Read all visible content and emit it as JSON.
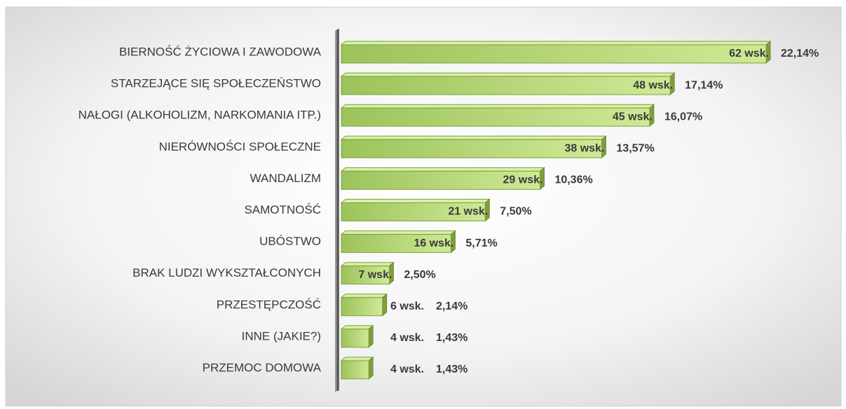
{
  "chart_data": {
    "type": "bar",
    "orientation": "horizontal",
    "categories": [
      "BIERNOŚĆ ŻYCIOWA I ZAWODOWA",
      "STARZEJĄCE SIĘ SPOŁECZEŃSTWO",
      "NAŁOGI (ALKOHOLIZM, NARKOMANIA ITP.)",
      "NIERÓWNOŚCI SPOŁECZNE",
      "WANDALIZM",
      "SAMOTNOŚĆ",
      "UBÓSTWO",
      "BRAK LUDZI WYKSZTAŁCONYCH",
      "PRZESTĘPCZOŚĆ",
      "INNE (JAKIE?)",
      "PRZEMOC DOMOWA"
    ],
    "values": [
      62,
      48,
      45,
      38,
      29,
      21,
      16,
      7,
      6,
      4,
      4
    ],
    "value_labels": [
      "62 wsk.",
      "48 wsk.",
      "45 wsk.",
      "38 wsk.",
      "29 wsk.",
      "21 wsk.",
      "16 wsk.",
      "7 wsk.",
      "6 wsk.",
      "4 wsk.",
      "4 wsk."
    ],
    "shares": [
      22.14,
      17.14,
      16.07,
      13.57,
      10.36,
      7.5,
      5.71,
      2.5,
      2.14,
      1.43,
      1.43
    ],
    "share_labels": [
      "22,14%",
      "17,14%",
      "16,07%",
      "13,57%",
      "10,36%",
      "7,50%",
      "5,71%",
      "2,50%",
      "2,14%",
      "1,43%",
      "1,43%"
    ],
    "color": "#a9cd6b",
    "xlim": [
      0,
      62
    ]
  }
}
